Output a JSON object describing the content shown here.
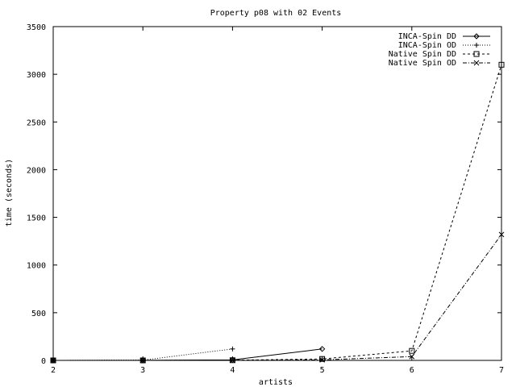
{
  "chart_data": {
    "type": "line",
    "title": "Property p08 with 02 Events",
    "xlabel": "artists",
    "ylabel": "time (seconds)",
    "xlim": [
      2,
      7
    ],
    "ylim": [
      0,
      3500
    ],
    "xticks": [
      "2",
      "3",
      "4",
      "5",
      "6",
      "7"
    ],
    "yticks": [
      "0",
      "500",
      "1000",
      "1500",
      "2000",
      "2500",
      "3000",
      "3500"
    ],
    "grid": false,
    "legend_position": "top-right",
    "series": [
      {
        "name": "INCA-Spin DD",
        "dash": "solid",
        "marker": "diamond",
        "x": [
          2,
          3,
          4,
          5
        ],
        "y": [
          0,
          1,
          5,
          120
        ]
      },
      {
        "name": "INCA-Spin OD",
        "dash": "dotted",
        "marker": "plus",
        "x": [
          2,
          3,
          4
        ],
        "y": [
          0,
          3,
          120
        ]
      },
      {
        "name": "Native Spin DD",
        "dash": "dashed",
        "marker": "square",
        "x": [
          2,
          3,
          4,
          5,
          6,
          7
        ],
        "y": [
          0,
          0,
          2,
          15,
          100,
          3100
        ]
      },
      {
        "name": "Native Spin OD",
        "dash": "dashdot",
        "marker": "cross",
        "x": [
          2,
          3,
          4,
          5,
          6,
          7
        ],
        "y": [
          0,
          0,
          1,
          5,
          40,
          1320
        ]
      }
    ]
  }
}
